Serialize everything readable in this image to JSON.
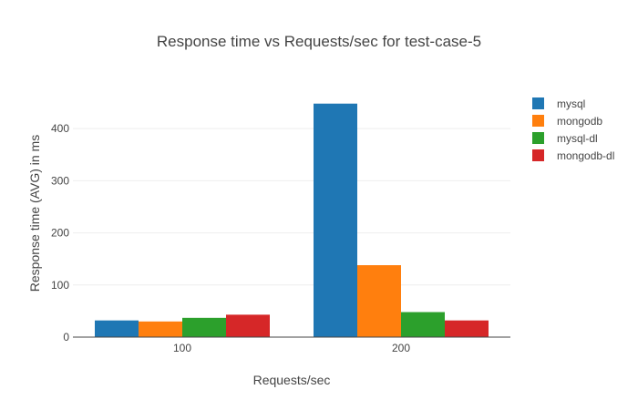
{
  "chart_data": {
    "type": "bar",
    "title": "Response time vs Requests/sec for test-case-5",
    "xlabel": "Requests/sec",
    "ylabel": "Response time (AVG) in ms",
    "categories": [
      "100",
      "200"
    ],
    "series": [
      {
        "name": "mysql",
        "color": "#1f77b4",
        "values": [
          32,
          448
        ]
      },
      {
        "name": "mongodb",
        "color": "#ff7f0e",
        "values": [
          30,
          138
        ]
      },
      {
        "name": "mysql-dl",
        "color": "#2ca02c",
        "values": [
          37,
          48
        ]
      },
      {
        "name": "mongodb-dl",
        "color": "#d62728",
        "values": [
          43,
          32
        ]
      }
    ],
    "ylim": [
      0,
      472
    ],
    "yticks": [
      0,
      100,
      200,
      300,
      400
    ],
    "grid": true,
    "legend_position": "top-right"
  }
}
